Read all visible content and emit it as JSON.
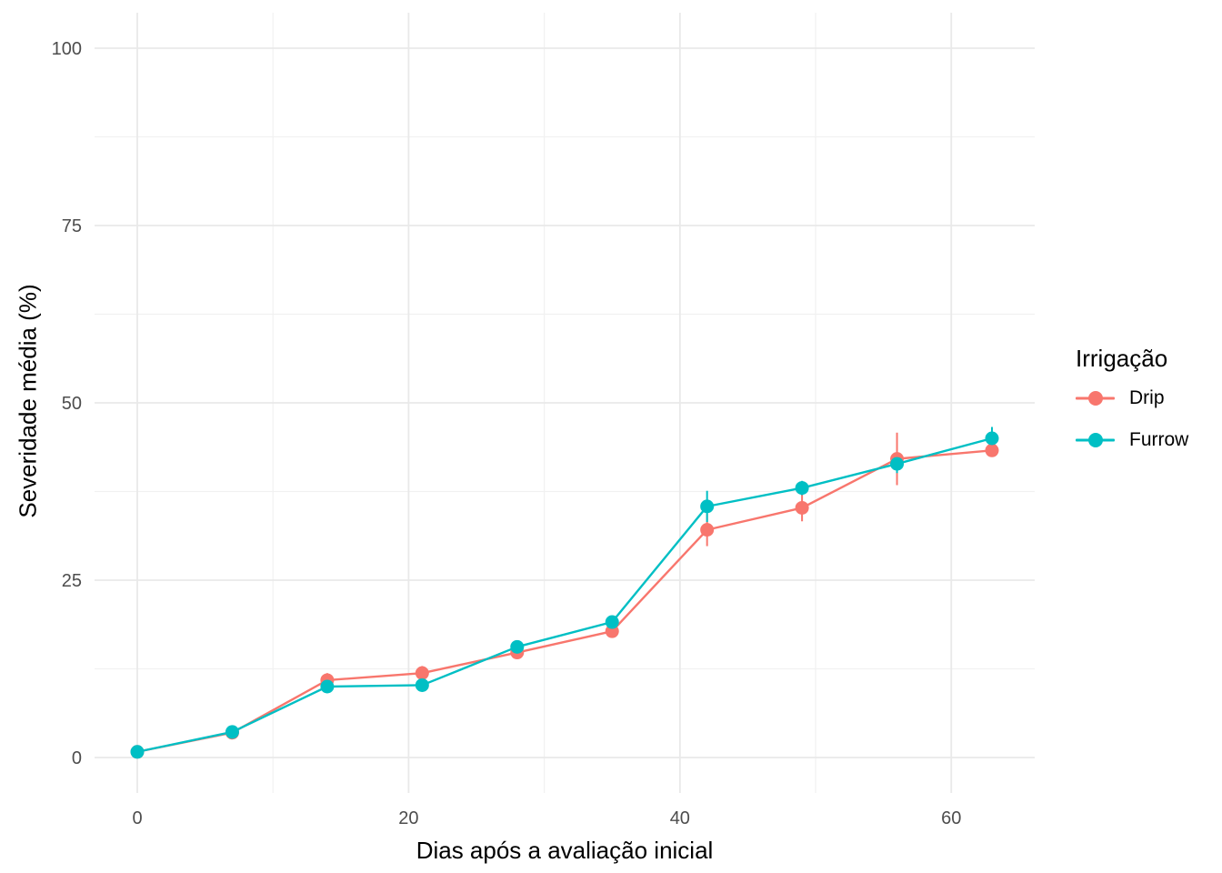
{
  "figure": {
    "background": "#ffffff"
  },
  "chart_data": {
    "type": "line",
    "title": "",
    "xlabel": "Dias após a avaliação inicial",
    "ylabel": "Severidade média (%)",
    "x": [
      0,
      7,
      14,
      21,
      28,
      35,
      42,
      49,
      56,
      63
    ],
    "series": [
      {
        "name": "Drip",
        "color": "#F8766D",
        "values": [
          0.8,
          3.5,
          10.9,
          11.9,
          14.8,
          17.8,
          32.1,
          35.2,
          42.1,
          43.3
        ],
        "errors": [
          0.4,
          0.5,
          1.0,
          1.0,
          0.6,
          0.7,
          2.3,
          1.9,
          3.7,
          0.9
        ]
      },
      {
        "name": "Furrow",
        "color": "#00BFC4",
        "values": [
          0.8,
          3.6,
          10.0,
          10.2,
          15.6,
          19.1,
          35.4,
          38.0,
          41.4,
          45.0
        ],
        "errors": [
          0.4,
          0.5,
          0.6,
          0.6,
          0.6,
          0.8,
          2.2,
          1.0,
          1.3,
          1.6
        ]
      }
    ],
    "x_ticks": [
      0,
      20,
      40,
      60
    ],
    "y_ticks": [
      0,
      25,
      50,
      75,
      100
    ],
    "x_minor": [
      10,
      30,
      50
    ],
    "y_minor": [
      12.5,
      37.5,
      62.5,
      87.5
    ],
    "xlim": [
      -3.15,
      66.15
    ],
    "ylim": [
      -5,
      105
    ],
    "grid": true,
    "legend_position": "right",
    "colors": {
      "grid_major": "#E9E9E9",
      "grid_minor": "#F1F1F1",
      "tick_label": "#4D4D4D",
      "axis_title": "#000000",
      "panel_background": "#FFFFFF"
    }
  },
  "legend": {
    "title": "Irrigação",
    "items": [
      {
        "label": "Drip",
        "color": "#F8766D"
      },
      {
        "label": "Furrow",
        "color": "#00BFC4"
      }
    ]
  }
}
